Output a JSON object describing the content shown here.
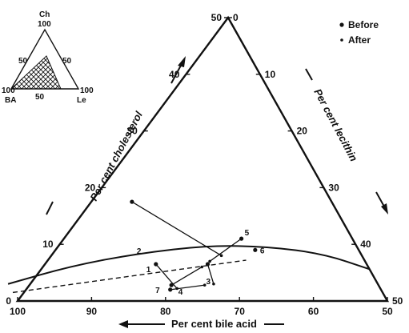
{
  "chart_data": {
    "type": "scatter",
    "subtype": "ternary",
    "axes": {
      "bile_acid": {
        "label": "Per cent bile acid",
        "ticks": [
          "100",
          "90",
          "80",
          "70",
          "60",
          "50"
        ]
      },
      "cholesterol": {
        "label": "Per cent cholesterol",
        "ticks": [
          "0",
          "10",
          "20",
          "30",
          "40",
          "50"
        ]
      },
      "lecithin": {
        "label": "Per cent lecithin",
        "ticks": [
          "0",
          "10",
          "20",
          "30",
          "40",
          "50"
        ]
      }
    },
    "legend": {
      "position": "top-right",
      "items": [
        {
          "label": "Before",
          "marker": "dot"
        },
        {
          "label": "After",
          "marker": "small-dot"
        }
      ]
    },
    "solubility_curve": [
      {
        "ba": 100,
        "ch": 3
      },
      {
        "ba": 90,
        "ch": 6.2
      },
      {
        "ba": 80,
        "ch": 8.4
      },
      {
        "ba": 70,
        "ch": 9.8
      },
      {
        "ba": 62,
        "ch": 9.6
      },
      {
        "ba": 55,
        "ch": 8.3
      },
      {
        "ba": 50,
        "ch": 5.6
      }
    ],
    "dashed_line": [
      {
        "ba": 100,
        "ch": 1.5
      },
      {
        "ba": 66,
        "ch": 7.2
      }
    ],
    "patients": [
      {
        "id": "1",
        "before": {
          "ba": 78.5,
          "ch": 6.5
        },
        "after": {
          "ba": 77.5,
          "ch": 2.2
        }
      },
      {
        "id": "2",
        "before": {
          "ba": 77.0,
          "ch": 17.5
        },
        "after": {
          "ba": 69.0,
          "ch": 8.0
        }
      },
      {
        "id": "3",
        "before": {
          "ba": 71.5,
          "ch": 6.5
        },
        "after": {
          "ba": 72.2,
          "ch": 3.0
        }
      },
      {
        "id": "4",
        "before": {
          "ba": 78.5,
          "ch": 2.0
        },
        "after": {
          "ba": 73.5,
          "ch": 2.8
        }
      },
      {
        "id": "5",
        "before": {
          "ba": 65.0,
          "ch": 11.0
        },
        "after": {
          "ba": 71.0,
          "ch": 7.0
        }
      },
      {
        "id": "6",
        "before": {
          "ba": 64.0,
          "ch": 9.0
        },
        "after": null
      },
      {
        "id": "7",
        "before": {
          "ba": 78.0,
          "ch": 2.8
        },
        "after": {
          "ba": 72.5,
          "ch": 6.0
        }
      }
    ],
    "inset": {
      "vertices": {
        "top": "Ch",
        "left": "BA",
        "right": "Le"
      },
      "labels": {
        "top_value": "100",
        "left_value": "100",
        "right_value": "100",
        "left_edge_mid": "50",
        "right_edge_mid": "50",
        "bottom_mid": "50"
      },
      "shaded_region": "cross-hatched"
    }
  }
}
